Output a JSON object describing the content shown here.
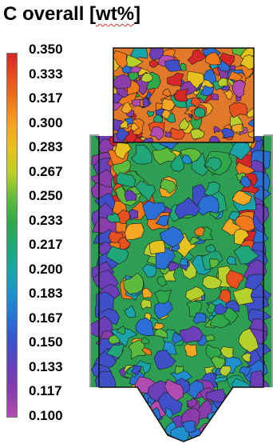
{
  "title": {
    "text_main": "C overall [",
    "text_underlined": "wt%",
    "text_end": "]"
  },
  "colorbar": {
    "ticks": [
      "0.350",
      "0.333",
      "0.317",
      "0.300",
      "0.283",
      "0.267",
      "0.250",
      "0.233",
      "0.217",
      "0.200",
      "0.183",
      "0.167",
      "0.150",
      "0.133",
      "0.117",
      "0.100"
    ],
    "colors": [
      "#d62728",
      "#e8501e",
      "#f07a1a",
      "#f5a623",
      "#e6c21e",
      "#b7cf2a",
      "#5dbb3c",
      "#2ea84a",
      "#1fa77a",
      "#1aa3a8",
      "#1f8fcf",
      "#2b6fd4",
      "#3f4fc8",
      "#6a3fb8",
      "#8b3cab",
      "#b24bb0"
    ]
  },
  "field": {
    "border_color": "#111111",
    "outer_wall_color": "#a0a0a0"
  }
}
